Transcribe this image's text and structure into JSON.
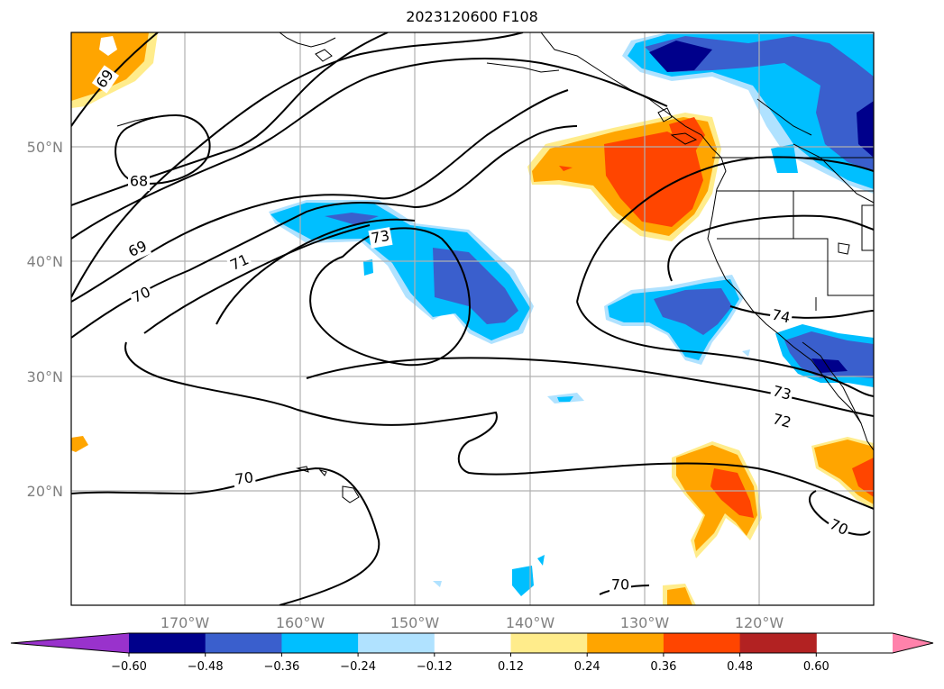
{
  "title": "2023120600 F108",
  "lat_labels": [
    "50°N",
    "40°N",
    "30°N",
    "20°N"
  ],
  "lon_labels": [
    "170°W",
    "160°W",
    "150°W",
    "140°W",
    "130°W",
    "120°W"
  ],
  "contour_labels": [
    "69",
    "68",
    "69",
    "70",
    "71",
    "73",
    "74",
    "73",
    "72",
    "70",
    "70",
    "70"
  ],
  "colorbar": {
    "ticks": [
      "−0.60",
      "−0.48",
      "−0.36",
      "−0.24",
      "−0.12",
      "0.12",
      "0.24",
      "0.36",
      "0.48",
      "0.60"
    ],
    "colors": [
      "#9932cc",
      "#00008b",
      "#3a5fcd",
      "#00bfff",
      "#b0e2ff",
      "#ffffff",
      "#ffec8b",
      "#ffa500",
      "#ff4500",
      "#b22222",
      "#ff82ab"
    ]
  }
}
